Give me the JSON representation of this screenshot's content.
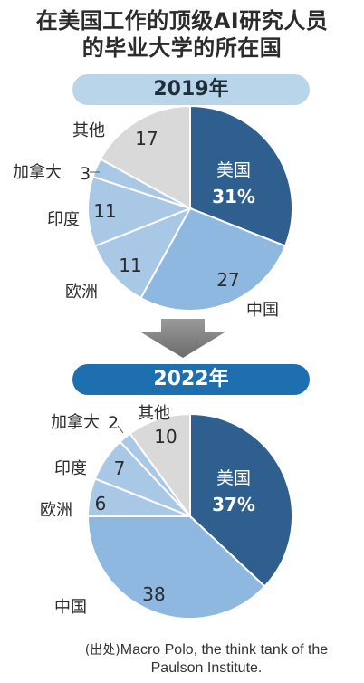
{
  "title_line1": "在美国工作的顶级AI研究人员",
  "title_line2": "的毕业大学的所在国",
  "source_label": "(出处)",
  "source_text": "Macro Polo, the think tank of the Paulson Institute.",
  "colors": {
    "usa": "#2f5f8f",
    "china": "#8fb8e0",
    "others": "#a8c8e6",
    "misc": "#d9d9d9",
    "year_2019_bg": "#b9d5ea",
    "year_2022_bg": "#1e6fb0"
  },
  "chart_data": [
    {
      "type": "pie",
      "title": "2019年",
      "categories": [
        "美国",
        "中国",
        "欧洲",
        "印度",
        "加拿大",
        "其他"
      ],
      "values": [
        31,
        27,
        11,
        11,
        3,
        17
      ],
      "labels": [
        "31%",
        "27",
        "11",
        "11",
        "3",
        "17"
      ]
    },
    {
      "type": "pie",
      "title": "2022年",
      "categories": [
        "美国",
        "中国",
        "欧洲",
        "印度",
        "加拿大",
        "其他"
      ],
      "values": [
        37,
        38,
        6,
        7,
        2,
        10
      ],
      "labels": [
        "37%",
        "38",
        "6",
        "7",
        "2",
        "10"
      ]
    }
  ]
}
